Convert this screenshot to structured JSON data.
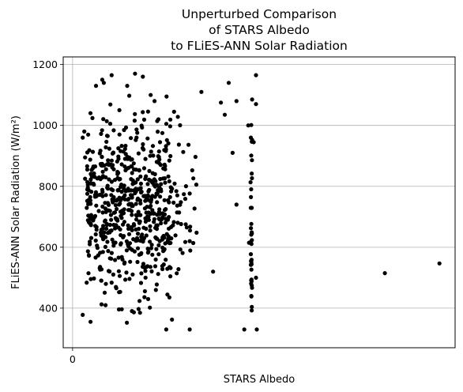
{
  "chart_data": {
    "type": "scatter",
    "title_lines": [
      "Unperturbed Comparison",
      "of STARS Albedo",
      "to FLiES-ANN Solar Radiation"
    ],
    "xlabel": "STARS Albedo",
    "ylabel": "FLiES-ANN Solar Radiation (W/m²)",
    "xlim": [
      -0.012,
      0.49
    ],
    "ylim": [
      270,
      1225
    ],
    "xticks": [
      0
    ],
    "xtick_labels": [
      "0"
    ],
    "yticks": [
      400,
      600,
      800,
      1000,
      1200
    ],
    "ytick_labels": [
      "400",
      "600",
      "800",
      "1000",
      "1200"
    ],
    "grid": "x and y major",
    "legend": "none",
    "marker_color": "#000000",
    "points_sample": [
      [
        0.013,
        378
      ],
      [
        0.013,
        960
      ],
      [
        0.015,
        980
      ],
      [
        0.016,
        895
      ],
      [
        0.016,
        825
      ],
      [
        0.02,
        970
      ],
      [
        0.021,
        745
      ],
      [
        0.022,
        618
      ],
      [
        0.023,
        355
      ],
      [
        0.03,
        1130
      ],
      [
        0.038,
        1150
      ],
      [
        0.04,
        1140
      ],
      [
        0.045,
        965
      ],
      [
        0.05,
        1165
      ],
      [
        0.06,
        1050
      ],
      [
        0.07,
        1130
      ],
      [
        0.08,
        1170
      ],
      [
        0.09,
        1160
      ],
      [
        0.1,
        1100
      ],
      [
        0.105,
        1080
      ],
      [
        0.11,
        1020
      ],
      [
        0.112,
        945
      ],
      [
        0.115,
        975
      ],
      [
        0.12,
        330
      ],
      [
        0.13,
        1045
      ],
      [
        0.15,
        620
      ],
      [
        0.15,
        330
      ],
      [
        0.165,
        1110
      ],
      [
        0.18,
        520
      ],
      [
        0.19,
        1075
      ],
      [
        0.195,
        1035
      ],
      [
        0.205,
        910
      ],
      [
        0.21,
        740
      ],
      [
        0.21,
        1080
      ],
      [
        0.22,
        330
      ],
      [
        0.2,
        1140
      ],
      [
        0.23,
        1085
      ],
      [
        0.235,
        1070
      ],
      [
        0.236,
        330
      ],
      [
        0.232,
        945
      ],
      [
        0.225,
        1000
      ],
      [
        0.226,
        615
      ],
      [
        0.235,
        1165
      ],
      [
        0.235,
        500
      ],
      [
        0.4,
        515
      ],
      [
        0.47,
        547
      ]
    ],
    "generated_clusters": [
      {
        "x_range": [
          0.018,
          0.126
        ],
        "y_range": [
          315,
          1170
        ],
        "count": 600,
        "seed": 7
      },
      {
        "x_range": [
          0.125,
          0.16
        ],
        "y_range": [
          320,
          1150
        ],
        "count": 45,
        "seed": 11
      }
    ],
    "vertical_column": {
      "x": 0.229,
      "y_range": [
        370,
        1030
      ],
      "count": 38,
      "seed": 3
    }
  }
}
